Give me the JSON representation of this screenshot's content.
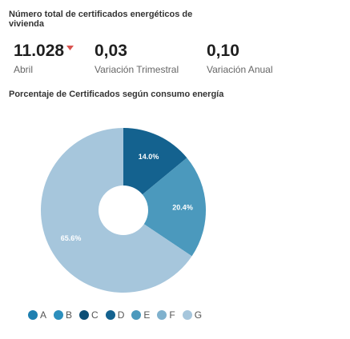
{
  "header": {
    "title": "Número total de certificados energéticos de vivienda"
  },
  "kpis": [
    {
      "value": "11.028",
      "label": "Abril",
      "trend": "down"
    },
    {
      "value": "0,03",
      "label": "Variación Trimestral"
    },
    {
      "value": "0,10",
      "label": "Variación Anual"
    }
  ],
  "chart_section": {
    "title": "Porcentaje de Certificados según consumo energía"
  },
  "chart_data": {
    "type": "pie",
    "title": "Porcentaje de Certificados según consumo energía",
    "series": [
      {
        "name": "A",
        "value": 0.0,
        "color": "#1e7fb0"
      },
      {
        "name": "B",
        "value": 0.0,
        "color": "#2c8fbd"
      },
      {
        "name": "C",
        "value": 0.0,
        "color": "#0d4f76"
      },
      {
        "name": "D",
        "value": 14.0,
        "color": "#14628f",
        "label": "14.0%"
      },
      {
        "name": "E",
        "value": 20.4,
        "color": "#4b99bd",
        "label": "20.4%"
      },
      {
        "name": "F",
        "value": 0.0,
        "color": "#7fb1cd"
      },
      {
        "name": "G",
        "value": 65.6,
        "color": "#a6c6dc",
        "label": "65.6%"
      }
    ],
    "legend": [
      "A",
      "B",
      "C",
      "D",
      "E",
      "F",
      "G"
    ],
    "legend_position": "bottom",
    "donut_hole": true
  }
}
